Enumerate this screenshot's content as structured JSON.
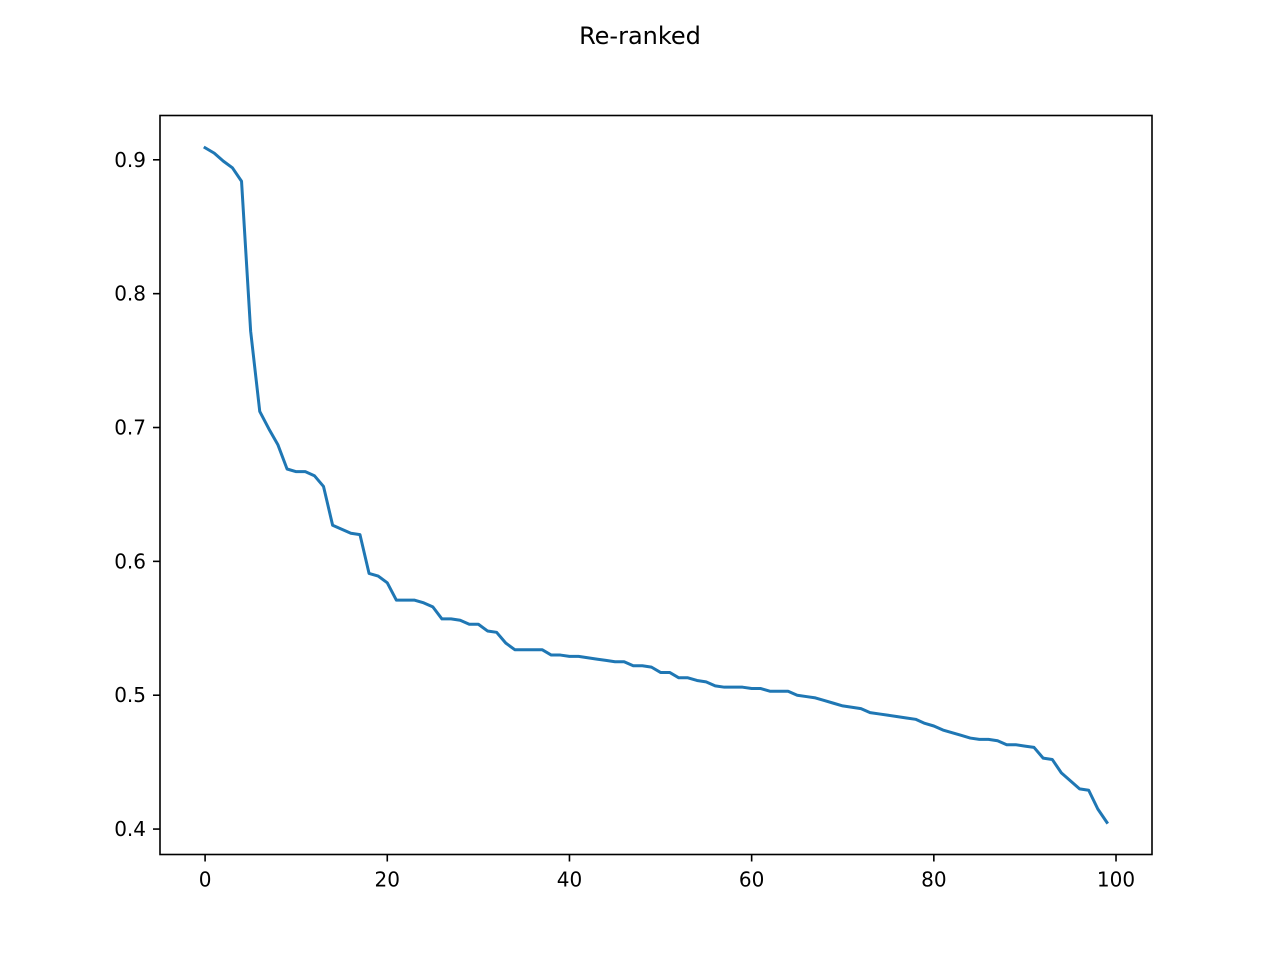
{
  "chart_data": {
    "type": "line",
    "title": "Re-ranked",
    "xlabel": "",
    "ylabel": "",
    "xlim": [
      -4.95,
      103.95
    ],
    "ylim": [
      0.381,
      0.9331
    ],
    "xticks": [
      0,
      20,
      40,
      60,
      80,
      100
    ],
    "xtick_labels": [
      "0",
      "20",
      "40",
      "60",
      "80",
      "100"
    ],
    "yticks": [
      0.4,
      0.5,
      0.6,
      0.7,
      0.8,
      0.9
    ],
    "ytick_labels": [
      "0.4",
      "0.5",
      "0.6",
      "0.7",
      "0.8",
      "0.9"
    ],
    "grid": false,
    "series": [
      {
        "color": "#1f77b4",
        "x": [
          0,
          1,
          2,
          3,
          4,
          5,
          6,
          7,
          8,
          9,
          10,
          11,
          12,
          13,
          14,
          15,
          16,
          17,
          18,
          19,
          20,
          21,
          22,
          23,
          24,
          25,
          26,
          27,
          28,
          29,
          30,
          31,
          32,
          33,
          34,
          35,
          36,
          37,
          38,
          39,
          40,
          41,
          42,
          43,
          44,
          45,
          46,
          47,
          48,
          49,
          50,
          51,
          52,
          53,
          54,
          55,
          56,
          57,
          58,
          59,
          60,
          61,
          62,
          63,
          64,
          65,
          66,
          67,
          68,
          69,
          70,
          71,
          72,
          73,
          74,
          75,
          76,
          77,
          78,
          79,
          80,
          81,
          82,
          83,
          84,
          85,
          86,
          87,
          88,
          89,
          90,
          91,
          92,
          93,
          94,
          95,
          96,
          97,
          98,
          99
        ],
        "y": [
          0.909,
          0.905,
          0.899,
          0.894,
          0.884,
          0.772,
          0.712,
          0.699,
          0.687,
          0.669,
          0.667,
          0.667,
          0.664,
          0.656,
          0.627,
          0.624,
          0.621,
          0.62,
          0.591,
          0.589,
          0.584,
          0.571,
          0.571,
          0.571,
          0.569,
          0.566,
          0.557,
          0.557,
          0.556,
          0.553,
          0.553,
          0.548,
          0.547,
          0.539,
          0.534,
          0.534,
          0.534,
          0.534,
          0.53,
          0.53,
          0.529,
          0.529,
          0.528,
          0.527,
          0.526,
          0.525,
          0.525,
          0.522,
          0.522,
          0.521,
          0.517,
          0.517,
          0.513,
          0.513,
          0.511,
          0.51,
          0.507,
          0.506,
          0.506,
          0.506,
          0.505,
          0.505,
          0.503,
          0.503,
          0.503,
          0.5,
          0.499,
          0.498,
          0.496,
          0.494,
          0.492,
          0.491,
          0.49,
          0.487,
          0.486,
          0.485,
          0.484,
          0.483,
          0.482,
          0.479,
          0.477,
          0.474,
          0.472,
          0.47,
          0.468,
          0.467,
          0.467,
          0.466,
          0.463,
          0.463,
          0.462,
          0.461,
          0.453,
          0.452,
          0.442,
          0.436,
          0.43,
          0.429,
          0.415,
          0.405
        ]
      }
    ]
  }
}
